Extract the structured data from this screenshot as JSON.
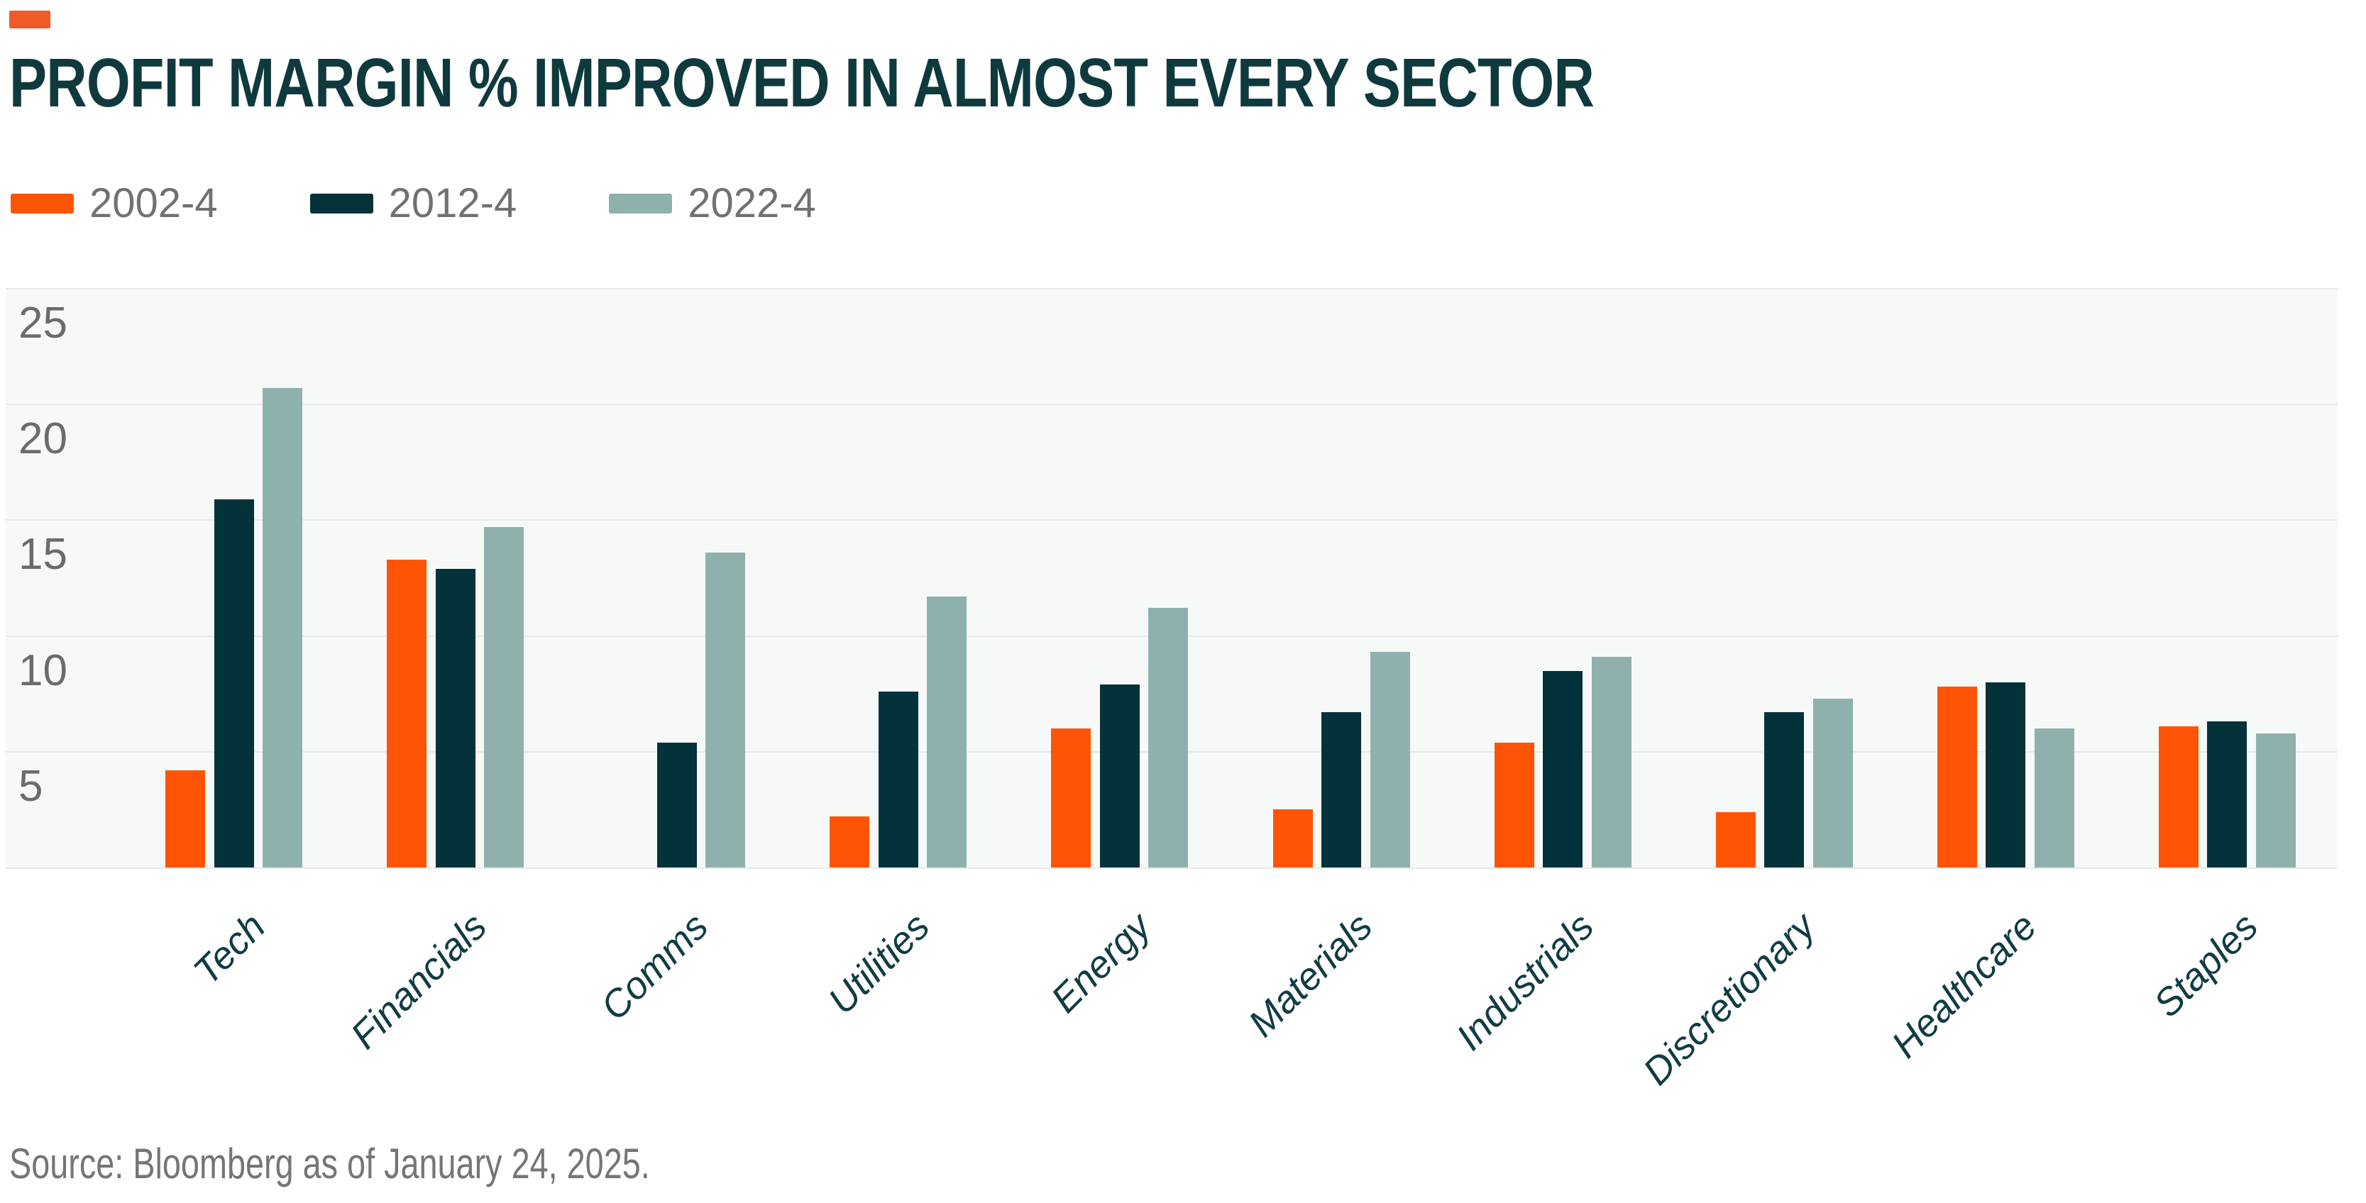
{
  "brand_color": "#f05a28",
  "header": {
    "title": "PROFIT MARGIN % IMPROVED IN ALMOST EVERY SECTOR",
    "title_color": "#0e3a3e"
  },
  "legend": [
    {
      "label": "2002-4",
      "color": "#ff5405"
    },
    {
      "label": "2012-4",
      "color": "#04323b"
    },
    {
      "label": "2022-4",
      "color": "#8fb1ae"
    }
  ],
  "source": "Source: Bloomberg as of January 24, 2025.",
  "source_color": "#737674",
  "chart_data": {
    "type": "bar",
    "title": "PROFIT MARGIN % IMPROVED IN ALMOST EVERY SECTOR",
    "xlabel": "",
    "ylabel": "",
    "categories": [
      "Tech",
      "Financials",
      "Comms",
      "Utilities",
      "Energy",
      "Materials",
      "Industrials",
      "Discretionary",
      "Healthcare",
      "Staples"
    ],
    "series": [
      {
        "name": "2002-4",
        "color": "#ff5405",
        "values": [
          4.2,
          13.3,
          0,
          2.2,
          6.0,
          2.5,
          5.4,
          2.4,
          7.8,
          6.1
        ]
      },
      {
        "name": "2012-4",
        "color": "#04323b",
        "values": [
          15.9,
          12.9,
          5.4,
          7.6,
          7.9,
          6.7,
          8.5,
          6.7,
          8.0,
          6.3
        ]
      },
      {
        "name": "2022-4",
        "color": "#8fb1ae",
        "values": [
          20.7,
          14.7,
          13.6,
          11.7,
          11.2,
          9.3,
          9.1,
          7.3,
          6.0,
          5.8
        ]
      }
    ],
    "ylim": [
      0,
      25
    ],
    "yticks": [
      5,
      10,
      15,
      20,
      25
    ],
    "grid": true,
    "legend_position": "top-left",
    "plot_bg": "#f7f9f8",
    "gridline_color": "#e7eae8",
    "axis_text_color": "#696c6b",
    "category_label_color": "#113c43"
  }
}
